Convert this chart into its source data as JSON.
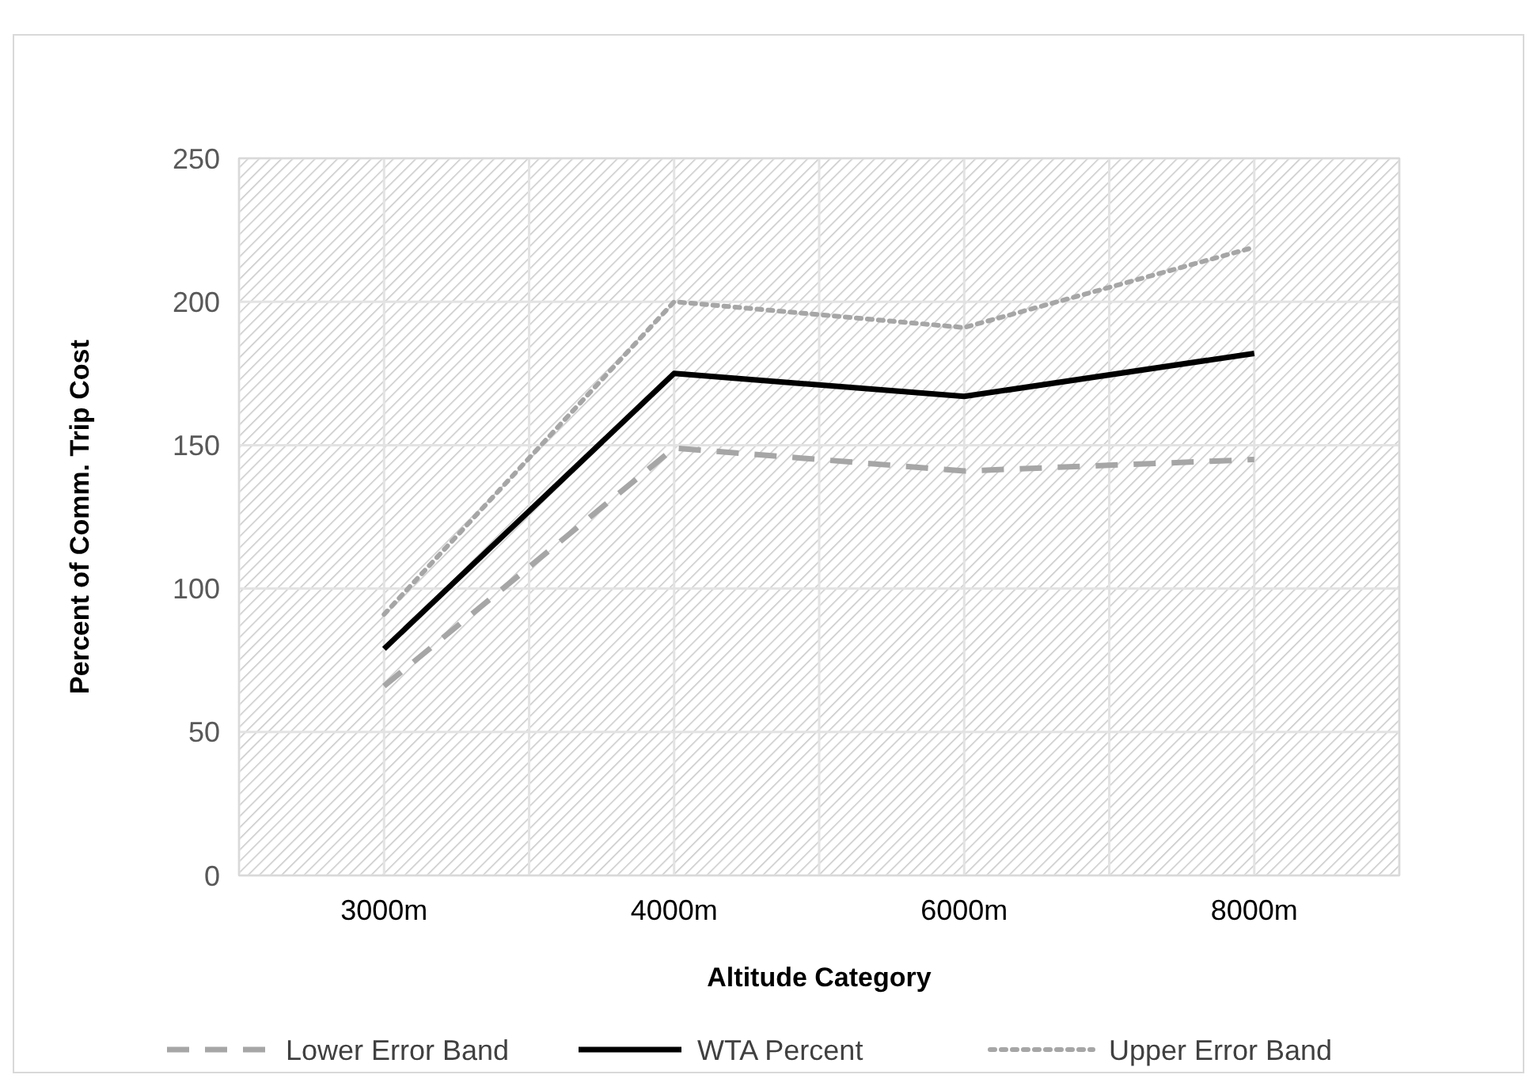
{
  "chart_data": {
    "type": "line",
    "xlabel": "Altitude Category",
    "ylabel": "Percent of Comm. Trip Cost",
    "categories": [
      "3000m",
      "4000m",
      "6000m",
      "8000m"
    ],
    "series": [
      {
        "name": "Lower Error Band",
        "color": "#a6a6a6",
        "values": [
          66,
          149,
          141,
          145
        ],
        "line_style": "dashed"
      },
      {
        "name": "WTA Percent",
        "color": "#000000",
        "values": [
          79,
          175,
          167,
          182
        ],
        "line_style": "solid"
      },
      {
        "name": "Upper Error Band",
        "color": "#a6a6a6",
        "values": [
          91,
          200,
          191,
          219
        ],
        "line_style": "dotted"
      }
    ],
    "ylim": [
      0,
      250
    ],
    "yticks": [
      0,
      50,
      100,
      150,
      200,
      250
    ],
    "grid": true,
    "legend": "bottom",
    "marker": "none"
  }
}
